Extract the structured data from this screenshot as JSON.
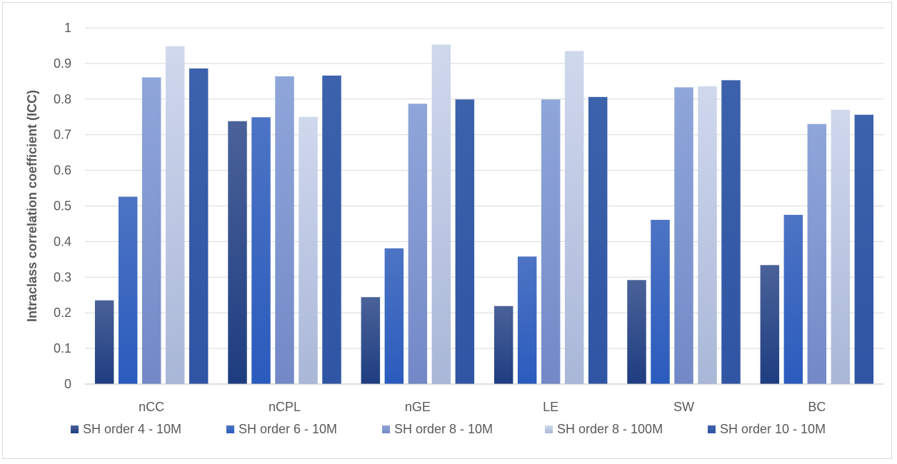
{
  "chart_data": {
    "type": "bar",
    "title": "",
    "xlabel": "",
    "ylabel": "Intraclass correlation coefficient (ICC)",
    "ylim": [
      0,
      1
    ],
    "yticks": [
      "0",
      "0.1",
      "0.2",
      "0.3",
      "0.4",
      "0.5",
      "0.6",
      "0.7",
      "0.8",
      "0.9",
      "1"
    ],
    "grid": true,
    "legend_position": "bottom",
    "categories": [
      "nCC",
      "nCPL",
      "nGE",
      "LE",
      "SW",
      "BC"
    ],
    "series": [
      {
        "name": "SH order 4 - 10M",
        "color_top": "#4a6299",
        "color_bottom": "#1e3d80",
        "values": [
          0.235,
          0.738,
          0.244,
          0.219,
          0.292,
          0.334
        ]
      },
      {
        "name": "SH order 6 - 10M",
        "color_top": "#4d74c4",
        "color_bottom": "#2a5bbd",
        "values": [
          0.526,
          0.749,
          0.381,
          0.358,
          0.461,
          0.475
        ]
      },
      {
        "name": "SH order 8 - 10M",
        "color_top": "#8fa6da",
        "color_bottom": "#7389c7",
        "values": [
          0.861,
          0.864,
          0.787,
          0.799,
          0.833,
          0.73
        ]
      },
      {
        "name": "SH order 8 - 100M",
        "color_top": "#d0d8ed",
        "color_bottom": "#a9b7d8",
        "values": [
          0.948,
          0.75,
          0.953,
          0.935,
          0.836,
          0.77
        ]
      },
      {
        "name": "SH order 10 - 10M",
        "color_top": "#3c62ac",
        "color_bottom": "#2f55a4",
        "values": [
          0.886,
          0.866,
          0.799,
          0.806,
          0.853,
          0.756
        ]
      }
    ]
  }
}
